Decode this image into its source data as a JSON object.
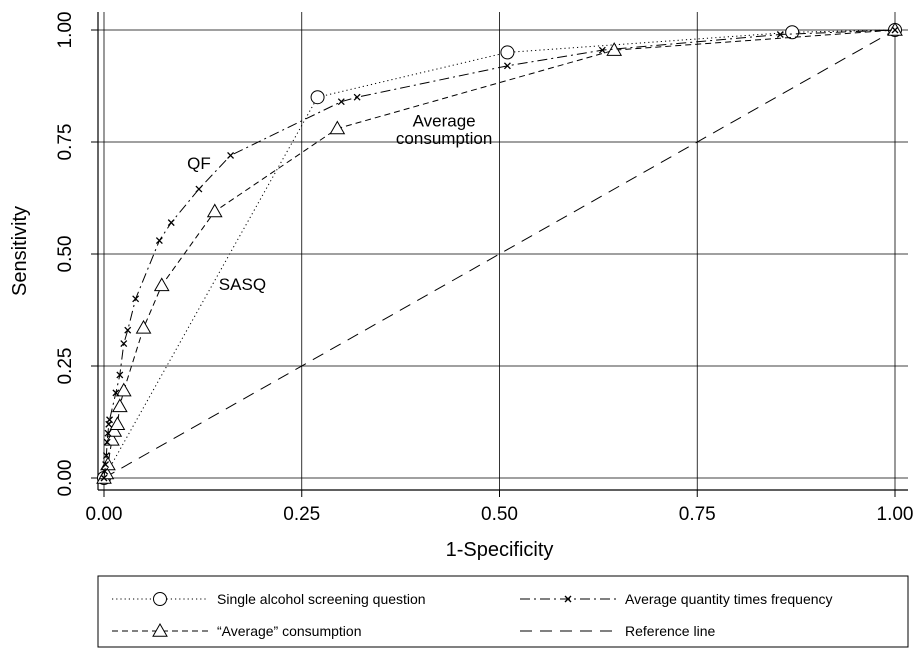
{
  "chart_data": {
    "type": "line",
    "title": "",
    "xlabel": "1-Specificity",
    "ylabel": "Sensitivity",
    "xlim": [
      0,
      1
    ],
    "ylim": [
      0,
      1
    ],
    "xticks": [
      {
        "value": 0,
        "label": "0.00"
      },
      {
        "value": 0.25,
        "label": "0.25"
      },
      {
        "value": 0.5,
        "label": "0.50"
      },
      {
        "value": 0.75,
        "label": "0.75"
      },
      {
        "value": 1,
        "label": "1.00"
      }
    ],
    "yticks": [
      {
        "value": 0,
        "label": "0.00"
      },
      {
        "value": 0.25,
        "label": "0.25"
      },
      {
        "value": 0.5,
        "label": "0.50"
      },
      {
        "value": 0.75,
        "label": "0.75"
      },
      {
        "value": 1,
        "label": "1.00"
      }
    ],
    "grid": true,
    "legend_position": "bottom",
    "series": [
      {
        "id": "sasq",
        "name": "Single alcohol screening question",
        "style": "dotted",
        "marker": "circle",
        "color": "#000000",
        "points": [
          [
            0,
            0
          ],
          [
            0.27,
            0.85
          ],
          [
            0.51,
            0.95
          ],
          [
            0.87,
            0.995
          ],
          [
            1.0,
            1.0
          ]
        ]
      },
      {
        "id": "qf",
        "name": "Average quantity times frequency",
        "style": "dashdot",
        "marker": "x",
        "color": "#000000",
        "points": [
          [
            0,
            0
          ],
          [
            0.001,
            0.015
          ],
          [
            0.002,
            0.03
          ],
          [
            0.003,
            0.05
          ],
          [
            0.004,
            0.08
          ],
          [
            0.005,
            0.1
          ],
          [
            0.006,
            0.12
          ],
          [
            0.007,
            0.13
          ],
          [
            0.015,
            0.19
          ],
          [
            0.02,
            0.23
          ],
          [
            0.025,
            0.3
          ],
          [
            0.03,
            0.33
          ],
          [
            0.04,
            0.4
          ],
          [
            0.07,
            0.53
          ],
          [
            0.085,
            0.57
          ],
          [
            0.12,
            0.645
          ],
          [
            0.16,
            0.72
          ],
          [
            0.3,
            0.84
          ],
          [
            0.32,
            0.85
          ],
          [
            0.51,
            0.92
          ],
          [
            0.63,
            0.955
          ],
          [
            0.855,
            0.99
          ],
          [
            1.0,
            1.0
          ]
        ]
      },
      {
        "id": "avg",
        "name": "“Average” consumption",
        "style": "dashed",
        "marker": "triangle",
        "color": "#000000",
        "points": [
          [
            0,
            0
          ],
          [
            0.003,
            0.01
          ],
          [
            0.005,
            0.03
          ],
          [
            0.01,
            0.085
          ],
          [
            0.013,
            0.105
          ],
          [
            0.017,
            0.12
          ],
          [
            0.02,
            0.16
          ],
          [
            0.025,
            0.195
          ],
          [
            0.05,
            0.335
          ],
          [
            0.073,
            0.43
          ],
          [
            0.14,
            0.595
          ],
          [
            0.295,
            0.78
          ],
          [
            0.645,
            0.955
          ],
          [
            1.0,
            1.0
          ]
        ]
      },
      {
        "id": "ref",
        "name": "Reference line",
        "style": "longdash",
        "marker": "none",
        "color": "#000000",
        "points": [
          [
            0,
            0
          ],
          [
            1,
            1
          ]
        ]
      }
    ],
    "annotations": [
      {
        "text": "QF",
        "x": 0.12,
        "y": 0.69
      },
      {
        "text": "Average",
        "x": 0.43,
        "y": 0.785
      },
      {
        "text": "consumption",
        "x": 0.43,
        "y": 0.745
      },
      {
        "text": "SASQ",
        "x": 0.175,
        "y": 0.42
      }
    ]
  }
}
